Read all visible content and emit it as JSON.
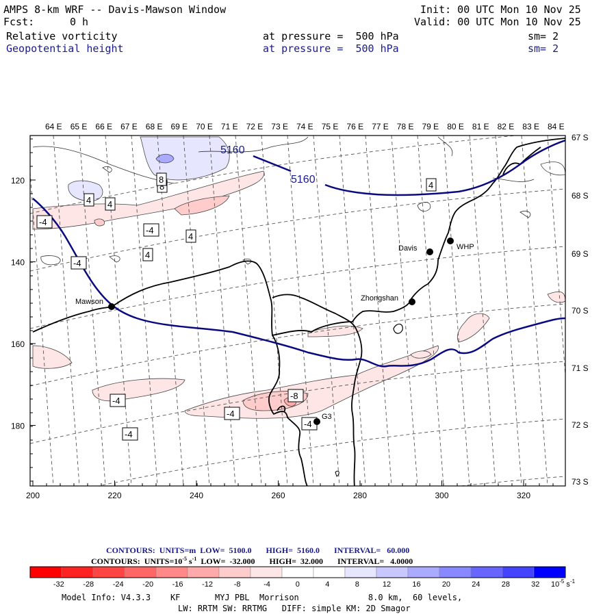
{
  "header": {
    "title": "AMPS 8-km WRF -- Davis-Mawson Window",
    "init": "Init: 00 UTC Mon 10 Nov 25",
    "fcst_label": "Fcst:",
    "fcst_value": "0 h",
    "valid": "Valid: 00 UTC Mon 10 Nov 25",
    "field1": "Relative vorticity",
    "field1_level": "at pressure =  500 hPa",
    "field1_sm": "sm= 2",
    "field2": "Geopotential height",
    "field2_level": "at pressure =  500 hPa",
    "field2_sm": "sm= 2"
  },
  "map": {
    "lon_labels": [
      "64 E",
      "65 E",
      "66 E",
      "67 E",
      "68 E",
      "69 E",
      "70 E",
      "71 E",
      "72 E",
      "73 E",
      "74 E",
      "75 E",
      "76 E",
      "77 E",
      "78 E",
      "79 E",
      "80 E",
      "81 E",
      "82 E",
      "83 E",
      "84 E"
    ],
    "lat_labels": [
      "67 S",
      "68 S",
      "69 S",
      "70 S",
      "71 S",
      "72 S",
      "73 S"
    ],
    "x_ticks": [
      "200",
      "220",
      "240",
      "260",
      "280",
      "300",
      "320"
    ],
    "y_ticks": [
      "120",
      "140",
      "160",
      "180"
    ],
    "stations": [
      {
        "name": "Mawson"
      },
      {
        "name": "Davis"
      },
      {
        "name": "WHP"
      },
      {
        "name": "Zhongshan"
      },
      {
        "name": "G3"
      }
    ],
    "height_labels": [
      "5160",
      "5160"
    ],
    "vort_labels": [
      "8",
      "4",
      "4",
      "8",
      "-4",
      "-4",
      "4",
      "-4",
      "4",
      "-4",
      "-4",
      "-4",
      "-8",
      "-4",
      "4"
    ]
  },
  "footer": {
    "contours1": "CONTOURS:  UNITS=m  LOW=  5100.0       HIGH=  5160.0       INTERVAL=   60.000",
    "contours2": "CONTOURS:  UNITS=10",
    "contours2_sup": "-5",
    "contours2_unit": " s",
    "contours2_sup2": "-1",
    "contours2_rest": "  LOW=  -32.000       HIGH=  32.000       INTERVAL=   4.0000",
    "scale_labels": [
      "-32",
      "-28",
      "-24",
      "-20",
      "-16",
      "-12",
      "-8",
      "-4",
      "0",
      "4",
      "8",
      "12",
      "16",
      "20",
      "24",
      "28",
      "32"
    ],
    "scale_unit": "10",
    "scale_unit_sup": "-5",
    "scale_unit_tail": " s",
    "scale_unit_sup2": "-1",
    "scale_colors": [
      "#ff0000",
      "#ff2222",
      "#ff4444",
      "#ff6666",
      "#ff8888",
      "#ffaaaa",
      "#ffcccc",
      "#ffe6e6",
      "#ffffff",
      "#ffffff",
      "#e6e6ff",
      "#c8c8ff",
      "#aaaaff",
      "#8888ff",
      "#6666ff",
      "#4444ff",
      "#0000ff"
    ],
    "model_info": "Model Info: V4.3.3    KF       MYJ PBL  Morrison              8.0 km,  60 levels,",
    "model_info2": "LW: RRTM SW: RRTMG   DIFF: simple KM: 2D Smagor"
  }
}
